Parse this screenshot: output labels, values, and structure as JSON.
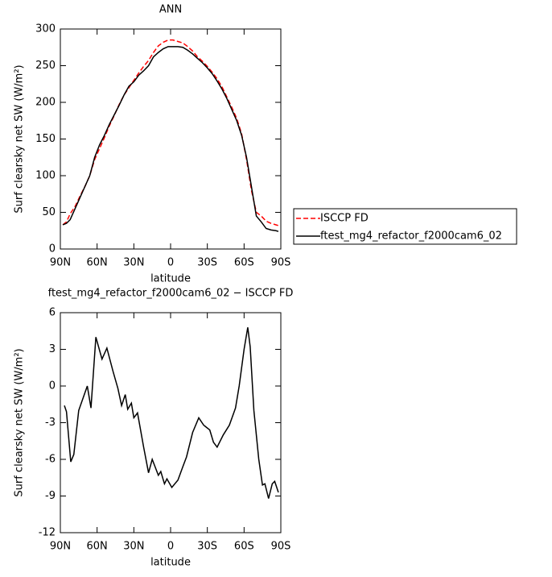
{
  "chart_data": [
    {
      "type": "line",
      "title": "ANN",
      "x_label": "latitude",
      "y_label": "Surf clearsky net SW (W/m²)",
      "x": [
        88,
        85,
        82,
        78,
        74,
        70,
        66,
        62,
        58,
        54,
        50,
        46,
        42,
        38,
        34,
        30,
        26,
        22,
        18,
        14,
        10,
        6,
        2,
        -2,
        -6,
        -10,
        -14,
        -18,
        -22,
        -26,
        -30,
        -34,
        -38,
        -42,
        -46,
        -50,
        -54,
        -58,
        -62,
        -66,
        -70,
        -74,
        -78,
        -82,
        -86,
        -88
      ],
      "series": [
        {
          "name": "ISCCP FD",
          "color": "#ff0000",
          "line_style": "dashed",
          "values": [
            33,
            37,
            48,
            58,
            72,
            85,
            100,
            122,
            137,
            152,
            168,
            182,
            197,
            210,
            220,
            230,
            240,
            249,
            257,
            268,
            277,
            282,
            285,
            285,
            283,
            281,
            276,
            270,
            262,
            256,
            249,
            241,
            232,
            221,
            207,
            193,
            178,
            157,
            122,
            80,
            50,
            45,
            38,
            35,
            33,
            32
          ]
        },
        {
          "name": "ftest_mg4_refactor_f2000cam6_02",
          "color": "#000000",
          "line_style": "solid",
          "values": [
            33,
            35,
            40,
            55,
            70,
            85,
            100,
            125,
            142,
            155,
            170,
            183,
            196,
            210,
            222,
            228,
            237,
            243,
            250,
            262,
            268,
            273,
            276,
            276,
            276,
            275,
            271,
            266,
            260,
            254,
            247,
            239,
            229,
            218,
            205,
            190,
            175,
            155,
            125,
            85,
            45,
            37,
            28,
            26,
            25,
            24
          ]
        }
      ],
      "xlim": [
        90,
        -90
      ],
      "xticks": [
        {
          "value": 90,
          "label": "90N"
        },
        {
          "value": 60,
          "label": "60N"
        },
        {
          "value": 30,
          "label": "30N"
        },
        0,
        {
          "value": -30,
          "label": "30S"
        },
        {
          "value": -60,
          "label": "60S"
        },
        {
          "value": -90,
          "label": "90S"
        }
      ],
      "ylim": [
        0,
        300
      ],
      "yticks": [
        0,
        50,
        100,
        150,
        200,
        250,
        300
      ],
      "legend": "right"
    },
    {
      "type": "line",
      "title": "ftest_mg4_refactor_f2000cam6_02 − ISCCP FD",
      "x_label": "latitude",
      "y_label": "Surf clearsky net SW (W/m²)",
      "x": [
        86.7,
        85,
        81.5,
        79,
        75,
        68,
        65,
        61,
        56,
        52,
        47,
        43,
        40,
        37,
        35,
        32,
        30,
        27,
        22,
        18,
        15,
        10,
        8,
        5,
        3,
        -1,
        -6,
        -10,
        -13,
        -18,
        -23,
        -27,
        -32,
        -35,
        -38,
        -43,
        -48,
        -53,
        -56,
        -60,
        -63,
        -65,
        -68,
        -72,
        -75,
        -77,
        -80,
        -83,
        -85,
        -88
      ],
      "values": [
        -1.6,
        -2.1,
        -6.2,
        -5.6,
        -2,
        0,
        -1.8,
        4,
        2.2,
        3.1,
        1.2,
        -0.2,
        -1.6,
        -0.7,
        -1.9,
        -1.4,
        -2.6,
        -2.2,
        -5,
        -7.1,
        -6,
        -7.3,
        -7,
        -8,
        -7.6,
        -8.3,
        -7.7,
        -6.6,
        -5.8,
        -3.8,
        -2.6,
        -3.2,
        -3.6,
        -4.6,
        -5,
        -4,
        -3.2,
        -1.8,
        0,
        3,
        4.8,
        3.2,
        -2,
        -6,
        -8.1,
        -8,
        -9.2,
        -8,
        -7.8,
        -8.7
      ],
      "color": "#000000",
      "xlim": [
        90,
        -90
      ],
      "xticks": [
        {
          "value": 90,
          "label": "90N"
        },
        {
          "value": 60,
          "label": "60N"
        },
        {
          "value": 30,
          "label": "30N"
        },
        0,
        {
          "value": -30,
          "label": "30S"
        },
        {
          "value": -60,
          "label": "60S"
        },
        {
          "value": -90,
          "label": "90S"
        }
      ],
      "ylim": [
        -12,
        6
      ],
      "yticks": [
        -12,
        -9,
        -6,
        -3,
        0,
        3,
        6
      ]
    }
  ]
}
